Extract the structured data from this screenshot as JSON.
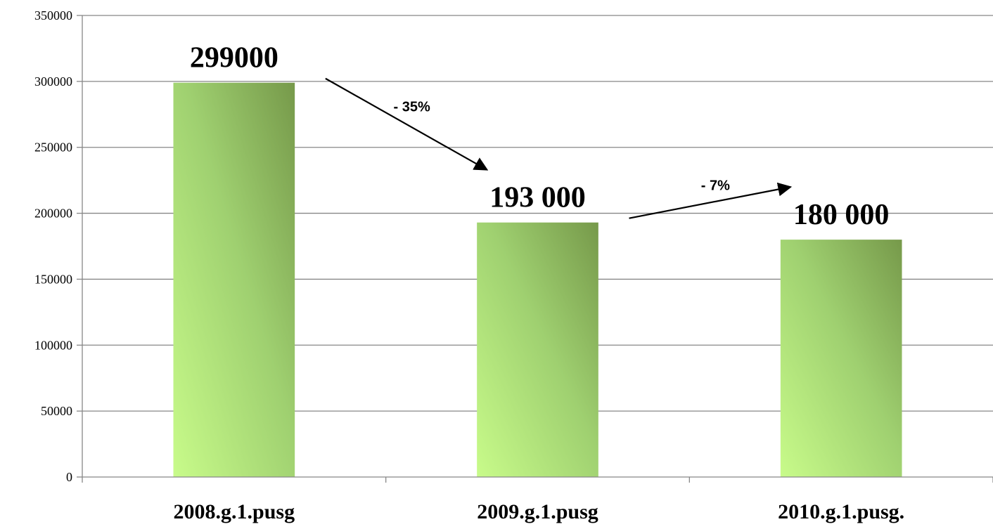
{
  "chart_data": {
    "type": "bar",
    "categories": [
      "2008.g.1.pusg",
      "2009.g.1.pusg",
      "2010.g.1.pusg."
    ],
    "values": [
      299000,
      193000,
      180000
    ],
    "data_labels": [
      "299000",
      "193 000",
      "180 000"
    ],
    "title": "",
    "xlabel": "",
    "ylabel": "",
    "ylim": [
      0,
      350000
    ],
    "y_ticks": [
      0,
      50000,
      100000,
      150000,
      200000,
      250000,
      300000,
      350000
    ],
    "y_tick_labels": [
      "0",
      "50000",
      "100000",
      "150000",
      "200000",
      "250000",
      "300000",
      "350000"
    ],
    "grid": true,
    "legend": "none",
    "annotations": [
      {
        "from": 0,
        "to": 1,
        "label": "- 35%"
      },
      {
        "from": 1,
        "to": 2,
        "label": "- 7%"
      }
    ],
    "colors": {
      "bar_light": "#c8fb8a",
      "bar_mid": "#9fd070",
      "bar_dark": "#76994a",
      "grid": "#878787"
    }
  }
}
